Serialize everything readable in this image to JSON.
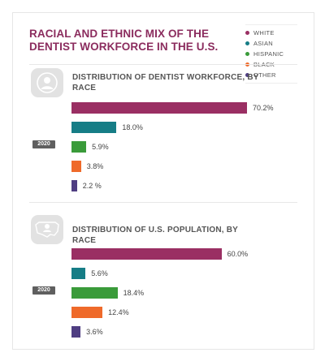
{
  "title": "RACIAL AND ETHNIC MIX OF THE DENTIST WORKFORCE IN THE U.S.",
  "legend": [
    {
      "label": "WHITE",
      "color": "#9a2f63"
    },
    {
      "label": "ASIAN",
      "color": "#167d86"
    },
    {
      "label": "HISPANIC",
      "color": "#3a9b3a"
    },
    {
      "label": "BLACK",
      "color": "#ef6a2a"
    },
    {
      "label": "OTHER",
      "color": "#4f3e82"
    }
  ],
  "chart_data": [
    {
      "type": "bar",
      "title": "DISTRIBUTION OF DENTIST WORKFORCE, BY RACE",
      "year": "2020",
      "categories": [
        "WHITE",
        "ASIAN",
        "HISPANIC",
        "BLACK",
        "OTHER"
      ],
      "values": [
        70.2,
        18.0,
        5.9,
        3.8,
        2.2
      ],
      "value_labels": [
        "70.2%",
        "18.0%",
        "5.9%",
        "3.8%",
        "2.2 %"
      ],
      "xlim": [
        0,
        70.2
      ]
    },
    {
      "type": "bar",
      "title": "DISTRIBUTION OF U.S. POPULATION, BY RACE",
      "year": "2020",
      "categories": [
        "WHITE",
        "ASIAN",
        "HISPANIC",
        "BLACK",
        "OTHER"
      ],
      "values": [
        60.0,
        5.6,
        18.4,
        12.4,
        3.6
      ],
      "value_labels": [
        "60.0%",
        "5.6%",
        "18.4%",
        "12.4%",
        "3.6%"
      ],
      "xlim": [
        0,
        70.2
      ]
    }
  ]
}
